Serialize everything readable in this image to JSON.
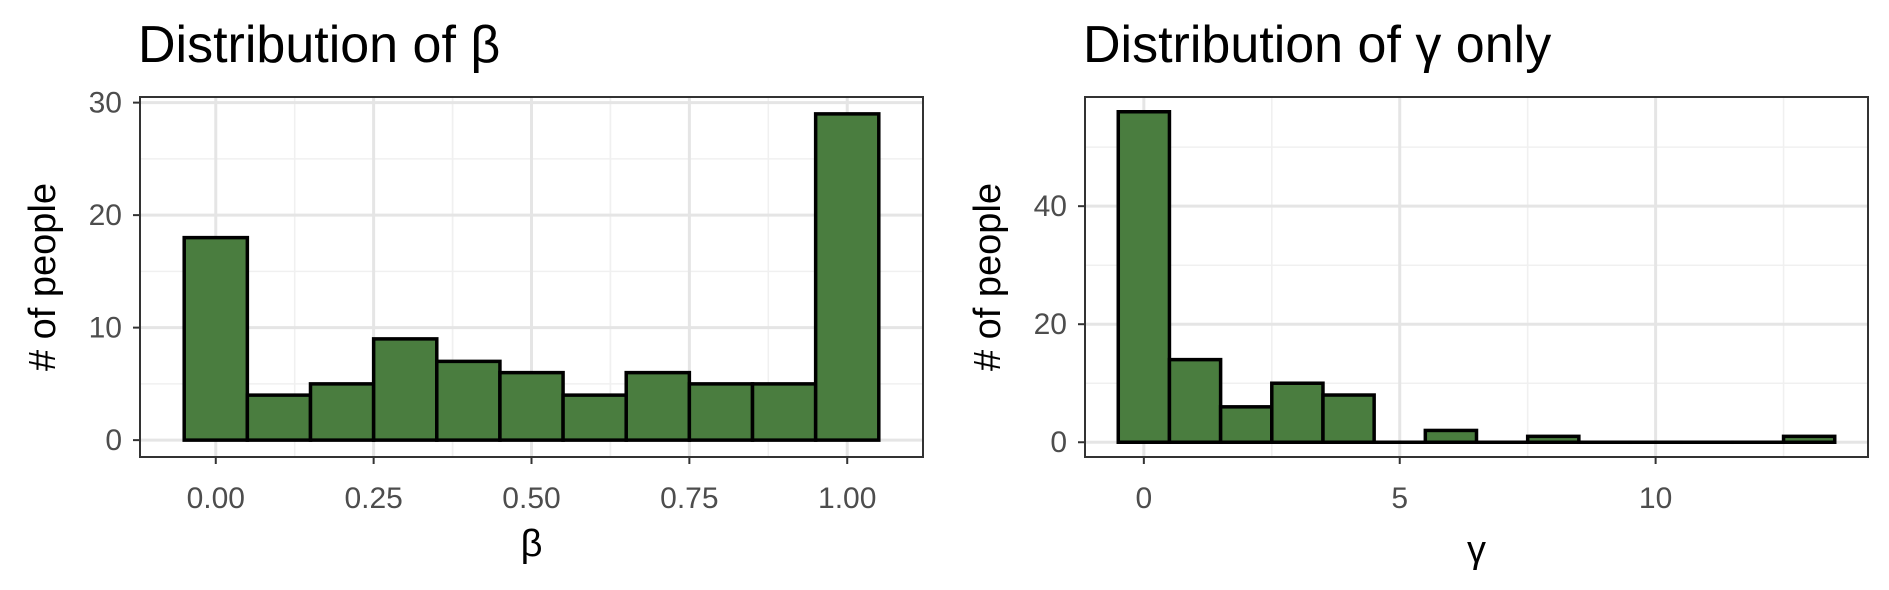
{
  "chart_data": [
    {
      "type": "bar",
      "title": "Distribution of β",
      "xlabel": "β",
      "ylabel": "# of people",
      "bin_width": 0.1,
      "x": [
        0.0,
        0.1,
        0.2,
        0.3,
        0.4,
        0.5,
        0.6,
        0.7,
        0.8,
        0.9,
        1.0
      ],
      "values": [
        18,
        4,
        5,
        9,
        7,
        6,
        4,
        6,
        5,
        5,
        29
      ],
      "xlim": [
        -0.12,
        1.12
      ],
      "ylim": [
        -1.5,
        30.5
      ],
      "xticks": [
        0,
        0.25,
        0.5,
        0.75,
        1
      ],
      "xtick_labels": [
        "0.00",
        "0.25",
        "0.50",
        "0.75",
        "1.00"
      ],
      "yticks": [
        0,
        10,
        20,
        30
      ],
      "ytick_labels": [
        "0",
        "10",
        "20",
        "30"
      ],
      "grid": true,
      "bar_color": "#4a7d3f",
      "edge_color": "#000000"
    },
    {
      "type": "bar",
      "title": "Distribution of γ only",
      "xlabel": "γ",
      "ylabel": "# of people",
      "bin_width": 1,
      "x": [
        0,
        1,
        2,
        3,
        4,
        5,
        6,
        7,
        8,
        9,
        10,
        11,
        12,
        13
      ],
      "values": [
        56,
        14,
        6,
        10,
        8,
        0,
        2,
        0,
        1,
        0,
        0,
        0,
        0,
        1
      ],
      "xlim": [
        -1.15,
        14.15
      ],
      "ylim": [
        -2.5,
        58.5
      ],
      "xticks": [
        0,
        5,
        10
      ],
      "xtick_labels": [
        "0",
        "5",
        "10"
      ],
      "yticks": [
        0,
        20,
        40
      ],
      "ytick_labels": [
        "0",
        "20",
        "40"
      ],
      "grid": true,
      "bar_color": "#4a7d3f",
      "edge_color": "#000000"
    }
  ]
}
